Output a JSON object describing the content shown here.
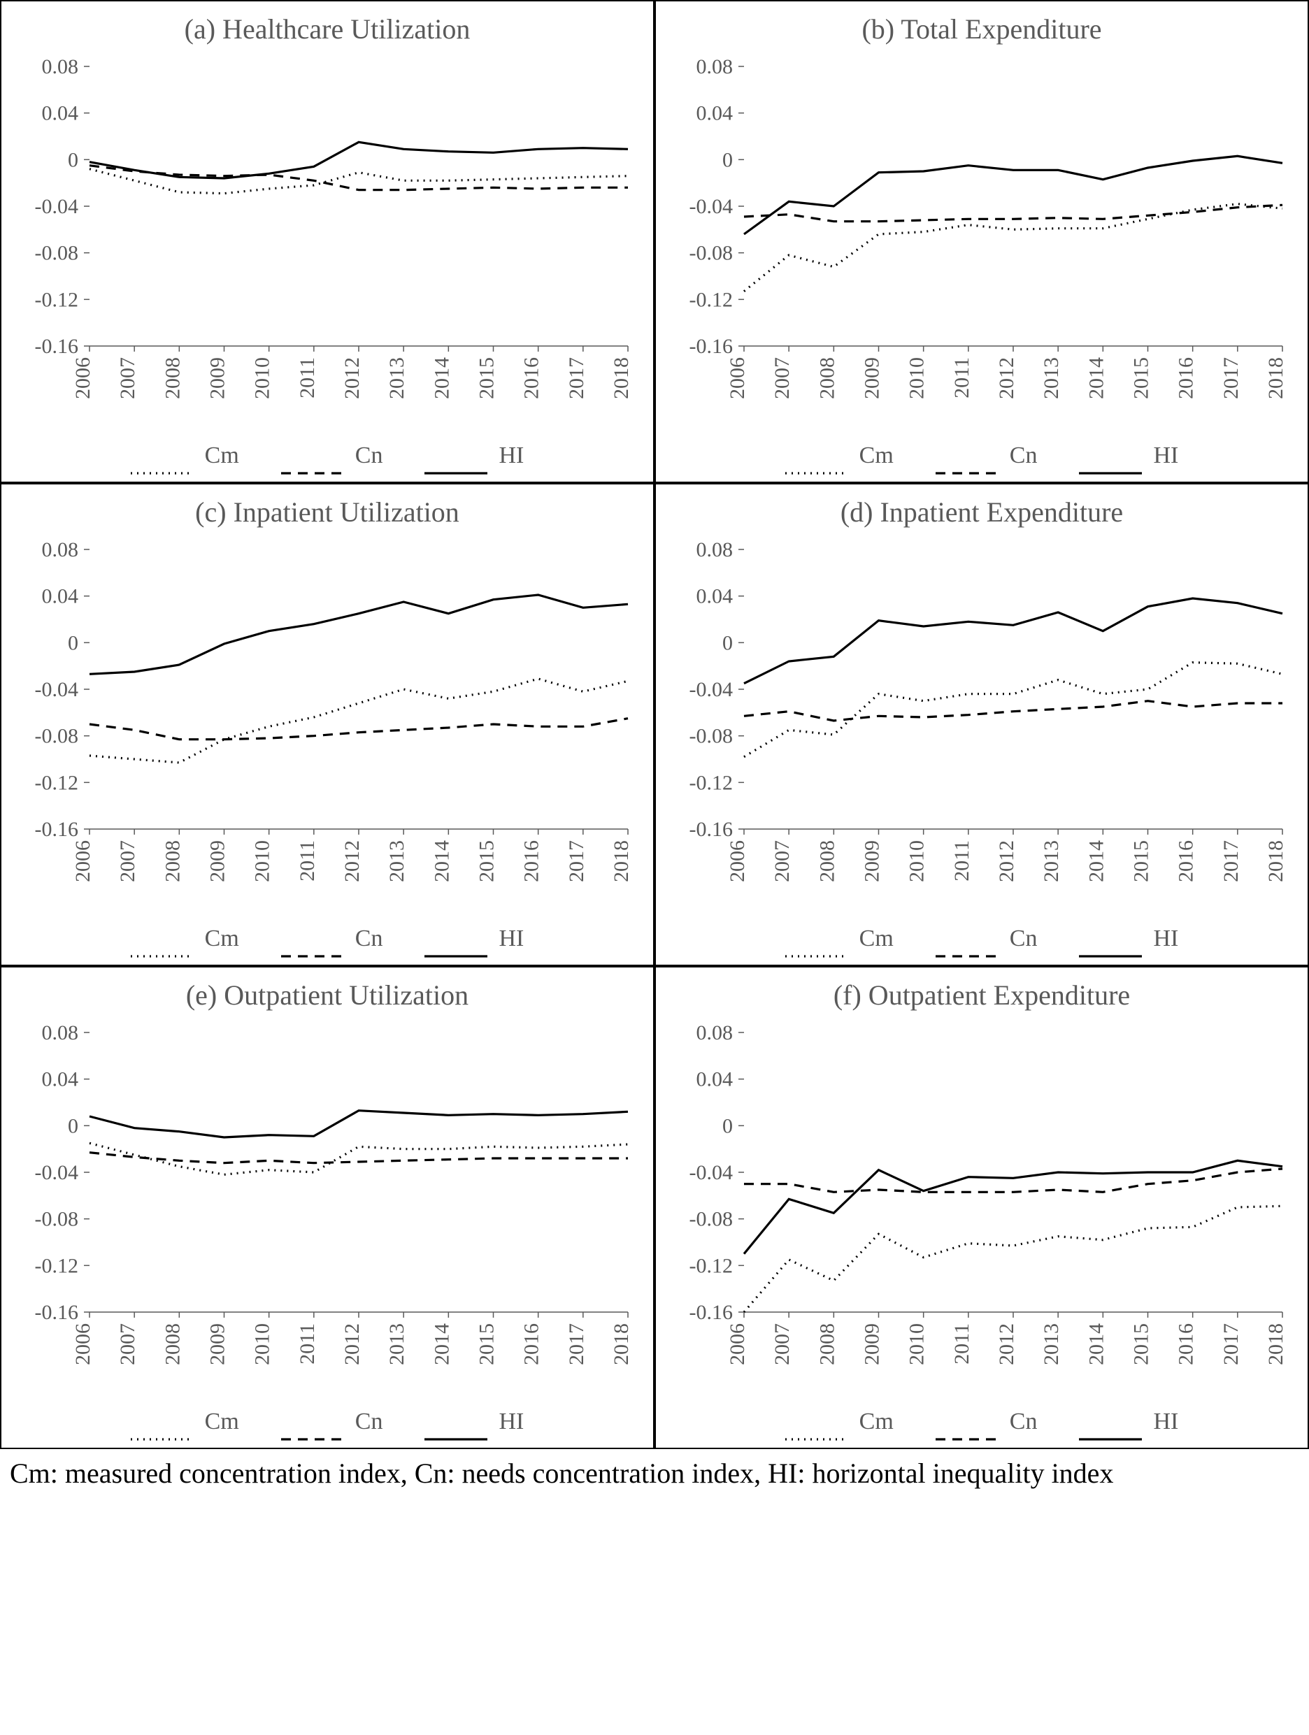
{
  "figure": {
    "background_color": "#ffffff",
    "grid_border_color": "#000000",
    "text_color": "#595959",
    "caption_color": "#000000",
    "font_family": "Times New Roman",
    "title_fontsize": 40,
    "axis_fontsize": 30,
    "legend_fontsize": 34,
    "line_width": 3.2,
    "x_categories": [
      "2006",
      "2007",
      "2008",
      "2009",
      "2010",
      "2011",
      "2012",
      "2013",
      "2014",
      "2015",
      "2016",
      "2017",
      "2018"
    ],
    "y_axis": {
      "min": -0.16,
      "max": 0.08,
      "step": 0.04
    },
    "series_styles": {
      "Cm": {
        "color": "#000000",
        "dash": "2 7",
        "label": "Cm"
      },
      "Cn": {
        "color": "#000000",
        "dash": "14 10",
        "label": "Cn"
      },
      "HI": {
        "color": "#000000",
        "dash": "none",
        "label": "HI"
      }
    },
    "panels": [
      {
        "id": "a",
        "title": "(a) Healthcare Utilization",
        "series": {
          "Cm": [
            -0.008,
            -0.018,
            -0.028,
            -0.029,
            -0.025,
            -0.022,
            -0.011,
            -0.018,
            -0.018,
            -0.017,
            -0.016,
            -0.015,
            -0.014
          ],
          "Cn": [
            -0.005,
            -0.01,
            -0.013,
            -0.014,
            -0.013,
            -0.018,
            -0.026,
            -0.026,
            -0.025,
            -0.024,
            -0.025,
            -0.024,
            -0.024
          ],
          "HI": [
            -0.002,
            -0.009,
            -0.015,
            -0.016,
            -0.012,
            -0.006,
            0.015,
            0.009,
            0.007,
            0.006,
            0.009,
            0.01,
            0.009
          ]
        }
      },
      {
        "id": "b",
        "title": "(b) Total Expenditure",
        "series": {
          "Cm": [
            -0.113,
            -0.082,
            -0.092,
            -0.064,
            -0.062,
            -0.056,
            -0.06,
            -0.059,
            -0.059,
            -0.051,
            -0.043,
            -0.038,
            -0.042
          ],
          "Cn": [
            -0.049,
            -0.047,
            -0.053,
            -0.053,
            -0.052,
            -0.051,
            -0.051,
            -0.05,
            -0.051,
            -0.048,
            -0.045,
            -0.041,
            -0.039
          ],
          "HI": [
            -0.064,
            -0.036,
            -0.04,
            -0.011,
            -0.01,
            -0.005,
            -0.009,
            -0.009,
            -0.017,
            -0.007,
            -0.001,
            0.003,
            -0.003
          ]
        }
      },
      {
        "id": "c",
        "title": "(c) Inpatient Utilization",
        "series": {
          "Cm": [
            -0.097,
            -0.1,
            -0.103,
            -0.083,
            -0.072,
            -0.064,
            -0.052,
            -0.04,
            -0.048,
            -0.042,
            -0.031,
            -0.042,
            -0.033
          ],
          "Cn": [
            -0.07,
            -0.075,
            -0.083,
            -0.083,
            -0.082,
            -0.08,
            -0.077,
            -0.075,
            -0.073,
            -0.07,
            -0.072,
            -0.072,
            -0.065
          ],
          "HI": [
            -0.027,
            -0.025,
            -0.019,
            -0.001,
            0.01,
            0.016,
            0.025,
            0.035,
            0.025,
            0.037,
            0.041,
            0.03,
            0.033
          ]
        }
      },
      {
        "id": "d",
        "title": "(d) Inpatient Expenditure",
        "series": {
          "Cm": [
            -0.098,
            -0.075,
            -0.079,
            -0.044,
            -0.05,
            -0.044,
            -0.044,
            -0.032,
            -0.044,
            -0.04,
            -0.017,
            -0.018,
            -0.027
          ],
          "Cn": [
            -0.063,
            -0.059,
            -0.067,
            -0.063,
            -0.064,
            -0.062,
            -0.059,
            -0.057,
            -0.055,
            -0.05,
            -0.055,
            -0.052,
            -0.052
          ],
          "HI": [
            -0.035,
            -0.016,
            -0.012,
            0.019,
            0.014,
            0.018,
            0.015,
            0.026,
            0.01,
            0.031,
            0.038,
            0.034,
            0.025
          ]
        }
      },
      {
        "id": "e",
        "title": "(e) Outpatient Utilization",
        "series": {
          "Cm": [
            -0.015,
            -0.025,
            -0.035,
            -0.042,
            -0.038,
            -0.04,
            -0.018,
            -0.02,
            -0.02,
            -0.018,
            -0.019,
            -0.018,
            -0.016
          ],
          "Cn": [
            -0.023,
            -0.027,
            -0.03,
            -0.032,
            -0.03,
            -0.032,
            -0.031,
            -0.03,
            -0.029,
            -0.028,
            -0.028,
            -0.028,
            -0.028
          ],
          "HI": [
            0.008,
            -0.002,
            -0.005,
            -0.01,
            -0.008,
            -0.009,
            0.013,
            0.011,
            0.009,
            0.01,
            0.009,
            0.01,
            0.012
          ]
        }
      },
      {
        "id": "f",
        "title": "(f) Outpatient Expenditure",
        "series": {
          "Cm": [
            -0.16,
            -0.115,
            -0.133,
            -0.093,
            -0.113,
            -0.101,
            -0.103,
            -0.095,
            -0.098,
            -0.088,
            -0.087,
            -0.07,
            -0.069
          ],
          "Cn": [
            -0.05,
            -0.05,
            -0.057,
            -0.055,
            -0.057,
            -0.057,
            -0.057,
            -0.055,
            -0.057,
            -0.05,
            -0.047,
            -0.04,
            -0.037
          ],
          "HI": [
            -0.11,
            -0.063,
            -0.075,
            -0.038,
            -0.056,
            -0.044,
            -0.045,
            -0.04,
            -0.041,
            -0.04,
            -0.04,
            -0.03,
            -0.035
          ]
        }
      }
    ],
    "caption": "Cm: measured concentration index, Cn: needs concentration index, HI: horizontal inequality index"
  }
}
